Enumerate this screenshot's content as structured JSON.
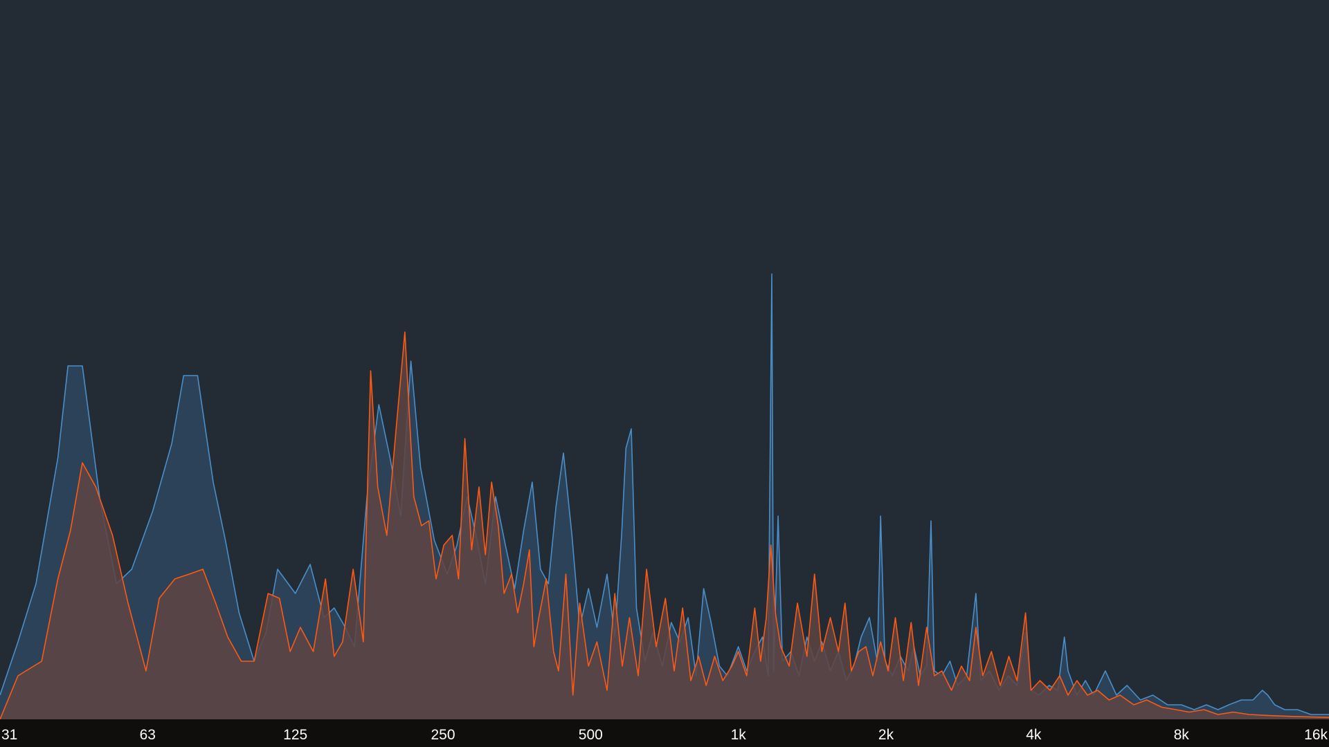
{
  "chart_data": {
    "type": "area",
    "xscale": "log2",
    "x_ticks": [
      {
        "value": 31.25,
        "label": "31"
      },
      {
        "value": 62.5,
        "label": "63"
      },
      {
        "value": 125,
        "label": "125"
      },
      {
        "value": 250,
        "label": "250"
      },
      {
        "value": 500,
        "label": "500"
      },
      {
        "value": 1000,
        "label": "1k"
      },
      {
        "value": 2000,
        "label": "2k"
      },
      {
        "value": 4000,
        "label": "4k"
      },
      {
        "value": 8000,
        "label": "8k"
      },
      {
        "value": 16000,
        "label": "16k"
      }
    ],
    "ylim": [
      0,
      1
    ],
    "grid": false,
    "colors": {
      "background": "#232b34",
      "axis_band": "#100d0d",
      "series_blue_line": "#4a8fc9",
      "series_blue_fill": "#2d4660",
      "series_orange_line": "#ff5a14",
      "series_orange_fill": "#5e4443"
    },
    "series": [
      {
        "color": "#4a8fc9",
        "fill": "#2d4660",
        "points": [
          [
            31.25,
            0.05
          ],
          [
            34,
            0.16
          ],
          [
            37,
            0.28
          ],
          [
            41,
            0.54
          ],
          [
            43,
            0.73
          ],
          [
            46,
            0.73
          ],
          [
            50,
            0.45
          ],
          [
            54,
            0.28
          ],
          [
            58,
            0.31
          ],
          [
            64,
            0.43
          ],
          [
            70,
            0.57
          ],
          [
            74,
            0.71
          ],
          [
            79,
            0.71
          ],
          [
            85,
            0.49
          ],
          [
            90,
            0.37
          ],
          [
            96,
            0.22
          ],
          [
            103,
            0.12
          ],
          [
            109,
            0.18
          ],
          [
            115,
            0.31
          ],
          [
            125,
            0.26
          ],
          [
            134,
            0.32
          ],
          [
            143,
            0.21
          ],
          [
            150,
            0.23
          ],
          [
            158,
            0.19
          ],
          [
            165,
            0.15
          ],
          [
            175,
            0.46
          ],
          [
            185,
            0.65
          ],
          [
            195,
            0.54
          ],
          [
            205,
            0.42
          ],
          [
            215,
            0.74
          ],
          [
            225,
            0.52
          ],
          [
            240,
            0.37
          ],
          [
            255,
            0.3
          ],
          [
            267,
            0.36
          ],
          [
            280,
            0.46
          ],
          [
            292,
            0.38
          ],
          [
            305,
            0.28
          ],
          [
            320,
            0.46
          ],
          [
            335,
            0.36
          ],
          [
            350,
            0.27
          ],
          [
            365,
            0.39
          ],
          [
            380,
            0.49
          ],
          [
            395,
            0.31
          ],
          [
            410,
            0.28
          ],
          [
            425,
            0.44
          ],
          [
            440,
            0.55
          ],
          [
            458,
            0.38
          ],
          [
            475,
            0.19
          ],
          [
            495,
            0.27
          ],
          [
            515,
            0.19
          ],
          [
            540,
            0.3
          ],
          [
            560,
            0.17
          ],
          [
            578,
            0.38
          ],
          [
            590,
            0.56
          ],
          [
            605,
            0.6
          ],
          [
            620,
            0.23
          ],
          [
            645,
            0.12
          ],
          [
            670,
            0.18
          ],
          [
            700,
            0.11
          ],
          [
            730,
            0.2
          ],
          [
            760,
            0.16
          ],
          [
            790,
            0.21
          ],
          [
            820,
            0.09
          ],
          [
            850,
            0.27
          ],
          [
            880,
            0.2
          ],
          [
            915,
            0.11
          ],
          [
            950,
            0.09
          ],
          [
            1000,
            0.15
          ],
          [
            1040,
            0.1
          ],
          [
            1080,
            0.14
          ],
          [
            1120,
            0.17
          ],
          [
            1150,
            0.09
          ],
          [
            1170,
            0.92
          ],
          [
            1180,
            0.1
          ],
          [
            1205,
            0.42
          ],
          [
            1230,
            0.12
          ],
          [
            1280,
            0.14
          ],
          [
            1330,
            0.09
          ],
          [
            1380,
            0.17
          ],
          [
            1430,
            0.12
          ],
          [
            1480,
            0.16
          ],
          [
            1540,
            0.1
          ],
          [
            1600,
            0.14
          ],
          [
            1660,
            0.08
          ],
          [
            1720,
            0.11
          ],
          [
            1780,
            0.17
          ],
          [
            1850,
            0.21
          ],
          [
            1920,
            0.12
          ],
          [
            1950,
            0.42
          ],
          [
            1990,
            0.12
          ],
          [
            2060,
            0.09
          ],
          [
            2140,
            0.13
          ],
          [
            2220,
            0.1
          ],
          [
            2280,
            0.15
          ],
          [
            2350,
            0.09
          ],
          [
            2420,
            0.11
          ],
          [
            2470,
            0.41
          ],
          [
            2510,
            0.1
          ],
          [
            2600,
            0.09
          ],
          [
            2700,
            0.12
          ],
          [
            2800,
            0.07
          ],
          [
            2920,
            0.09
          ],
          [
            3050,
            0.26
          ],
          [
            3120,
            0.08
          ],
          [
            3250,
            0.1
          ],
          [
            3400,
            0.06
          ],
          [
            3550,
            0.09
          ],
          [
            3700,
            0.07
          ],
          [
            3850,
            0.18
          ],
          [
            3950,
            0.06
          ],
          [
            4100,
            0.05
          ],
          [
            4300,
            0.07
          ],
          [
            4480,
            0.06
          ],
          [
            4620,
            0.17
          ],
          [
            4700,
            0.1
          ],
          [
            4900,
            0.05
          ],
          [
            5100,
            0.08
          ],
          [
            5300,
            0.05
          ],
          [
            5600,
            0.1
          ],
          [
            5900,
            0.05
          ],
          [
            6200,
            0.07
          ],
          [
            6600,
            0.04
          ],
          [
            7000,
            0.05
          ],
          [
            7500,
            0.03
          ],
          [
            8000,
            0.03
          ],
          [
            8500,
            0.02
          ],
          [
            9000,
            0.03
          ],
          [
            9500,
            0.02
          ],
          [
            10000,
            0.03
          ],
          [
            10600,
            0.04
          ],
          [
            11200,
            0.04
          ],
          [
            11700,
            0.06
          ],
          [
            12000,
            0.05
          ],
          [
            12400,
            0.03
          ],
          [
            13000,
            0.02
          ],
          [
            13800,
            0.02
          ],
          [
            14700,
            0.01
          ],
          [
            16000,
            0.01
          ]
        ]
      },
      {
        "color": "#ff5a14",
        "fill": "#5e4443",
        "points": [
          [
            31.25,
            0.0
          ],
          [
            34,
            0.09
          ],
          [
            38,
            0.12
          ],
          [
            41,
            0.29
          ],
          [
            43.5,
            0.39
          ],
          [
            46,
            0.53
          ],
          [
            49,
            0.48
          ],
          [
            53,
            0.38
          ],
          [
            57,
            0.24
          ],
          [
            62,
            0.1
          ],
          [
            66,
            0.25
          ],
          [
            71,
            0.29
          ],
          [
            76,
            0.3
          ],
          [
            81,
            0.31
          ],
          [
            86,
            0.24
          ],
          [
            91,
            0.17
          ],
          [
            97,
            0.12
          ],
          [
            103,
            0.12
          ],
          [
            110,
            0.26
          ],
          [
            116,
            0.25
          ],
          [
            122,
            0.14
          ],
          [
            128,
            0.19
          ],
          [
            136,
            0.14
          ],
          [
            144,
            0.29
          ],
          [
            150,
            0.13
          ],
          [
            156,
            0.16
          ],
          [
            164,
            0.31
          ],
          [
            172,
            0.16
          ],
          [
            178,
            0.72
          ],
          [
            184,
            0.48
          ],
          [
            192,
            0.38
          ],
          [
            201,
            0.61
          ],
          [
            209,
            0.8
          ],
          [
            218,
            0.46
          ],
          [
            226,
            0.4
          ],
          [
            234,
            0.41
          ],
          [
            242,
            0.29
          ],
          [
            251,
            0.36
          ],
          [
            261,
            0.38
          ],
          [
            269,
            0.29
          ],
          [
            277,
            0.58
          ],
          [
            286,
            0.35
          ],
          [
            296,
            0.48
          ],
          [
            305,
            0.34
          ],
          [
            314,
            0.49
          ],
          [
            324,
            0.4
          ],
          [
            333,
            0.26
          ],
          [
            345,
            0.3
          ],
          [
            355,
            0.22
          ],
          [
            365,
            0.28
          ],
          [
            375,
            0.35
          ],
          [
            383,
            0.15
          ],
          [
            392,
            0.21
          ],
          [
            406,
            0.29
          ],
          [
            420,
            0.14
          ],
          [
            430,
            0.1
          ],
          [
            445,
            0.3
          ],
          [
            460,
            0.05
          ],
          [
            475,
            0.24
          ],
          [
            495,
            0.11
          ],
          [
            515,
            0.16
          ],
          [
            540,
            0.06
          ],
          [
            560,
            0.26
          ],
          [
            580,
            0.11
          ],
          [
            600,
            0.21
          ],
          [
            625,
            0.09
          ],
          [
            650,
            0.31
          ],
          [
            680,
            0.15
          ],
          [
            710,
            0.25
          ],
          [
            740,
            0.1
          ],
          [
            770,
            0.23
          ],
          [
            800,
            0.08
          ],
          [
            830,
            0.13
          ],
          [
            860,
            0.07
          ],
          [
            895,
            0.13
          ],
          [
            930,
            0.08
          ],
          [
            970,
            0.11
          ],
          [
            1000,
            0.14
          ],
          [
            1040,
            0.09
          ],
          [
            1080,
            0.23
          ],
          [
            1110,
            0.12
          ],
          [
            1140,
            0.21
          ],
          [
            1165,
            0.36
          ],
          [
            1190,
            0.22
          ],
          [
            1220,
            0.15
          ],
          [
            1270,
            0.11
          ],
          [
            1320,
            0.24
          ],
          [
            1380,
            0.13
          ],
          [
            1430,
            0.3
          ],
          [
            1480,
            0.14
          ],
          [
            1540,
            0.21
          ],
          [
            1600,
            0.14
          ],
          [
            1650,
            0.24
          ],
          [
            1700,
            0.1
          ],
          [
            1760,
            0.14
          ],
          [
            1820,
            0.15
          ],
          [
            1880,
            0.09
          ],
          [
            1950,
            0.16
          ],
          [
            2020,
            0.1
          ],
          [
            2090,
            0.21
          ],
          [
            2170,
            0.08
          ],
          [
            2250,
            0.2
          ],
          [
            2330,
            0.07
          ],
          [
            2420,
            0.19
          ],
          [
            2510,
            0.09
          ],
          [
            2600,
            0.1
          ],
          [
            2720,
            0.06
          ],
          [
            2850,
            0.11
          ],
          [
            2960,
            0.08
          ],
          [
            3050,
            0.19
          ],
          [
            3150,
            0.09
          ],
          [
            3280,
            0.14
          ],
          [
            3420,
            0.07
          ],
          [
            3560,
            0.13
          ],
          [
            3700,
            0.08
          ],
          [
            3850,
            0.22
          ],
          [
            3950,
            0.06
          ],
          [
            4120,
            0.08
          ],
          [
            4320,
            0.06
          ],
          [
            4520,
            0.09
          ],
          [
            4700,
            0.05
          ],
          [
            4900,
            0.08
          ],
          [
            5150,
            0.05
          ],
          [
            5400,
            0.06
          ],
          [
            5700,
            0.04
          ],
          [
            6000,
            0.05
          ],
          [
            6400,
            0.03
          ],
          [
            6800,
            0.04
          ],
          [
            7300,
            0.025
          ],
          [
            7800,
            0.02
          ],
          [
            8300,
            0.015
          ],
          [
            8900,
            0.02
          ],
          [
            9500,
            0.01
          ],
          [
            10200,
            0.015
          ],
          [
            11000,
            0.01
          ],
          [
            12000,
            0.008
          ],
          [
            13500,
            0.006
          ],
          [
            16000,
            0.004
          ]
        ]
      }
    ]
  }
}
